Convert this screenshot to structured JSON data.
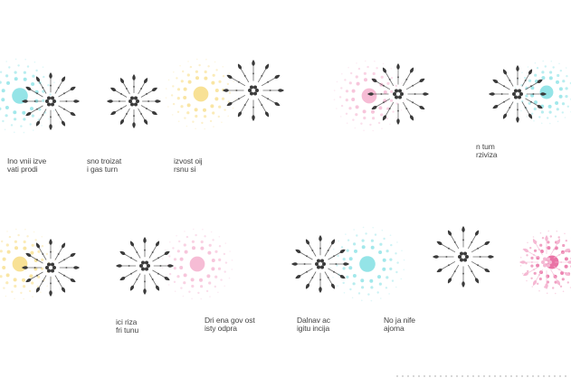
{
  "palette": {
    "cyan": "#8ee3e6",
    "yellow": "#f8df8f",
    "pink": "#f5b8d3",
    "magenta": "#e86aa0",
    "dark": "#3a3a3a",
    "gray": "#8a8a8a"
  },
  "motifs": [
    {
      "color": "cyan",
      "burst_color": "dark"
    },
    {
      "color": "dark",
      "burst_color": "dark"
    },
    {
      "color": "yellow",
      "burst_color": "dark"
    },
    {
      "color": "pink",
      "burst_color": "dark"
    },
    {
      "color": "cyan",
      "burst_color": "dark"
    },
    {
      "color": "yellow",
      "burst_color": "dark"
    },
    {
      "color": "pink",
      "burst_color": "dark"
    },
    {
      "color": "cyan",
      "burst_color": "dark"
    },
    {
      "color": "gray",
      "burst_color": "dark"
    },
    {
      "color": "magenta",
      "burst_color": "pink"
    }
  ],
  "captions": [
    {
      "lines": [
        "Ino vnii izve",
        "vati prodi"
      ]
    },
    {
      "lines": [
        "sno troizat",
        "i gas turn"
      ]
    },
    {
      "lines": [
        "izvost oij",
        "rsnu si"
      ]
    },
    {
      "lines": [
        "n tum",
        "rziviza"
      ]
    },
    {
      "lines": [
        "",
        ""
      ]
    },
    {
      "lines": [
        "ici riza",
        "fri tunu"
      ]
    },
    {
      "lines": [
        "Dri ena gov ost",
        "isty odpra"
      ]
    },
    {
      "lines": [
        "Dalnav ac",
        "igitu incija"
      ]
    },
    {
      "lines": [
        "No ja nife",
        "ajoma"
      ]
    },
    {
      "lines": [
        "",
        ""
      ]
    }
  ]
}
